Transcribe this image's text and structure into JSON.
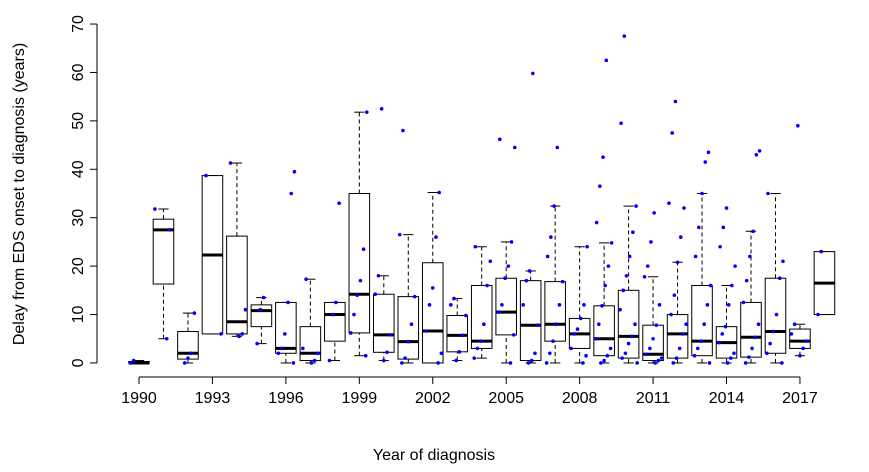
{
  "chart_data": {
    "type": "box",
    "xlabel": "Year of diagnosis",
    "ylabel": "Delay from EDS onset to diagnosis (years)",
    "categories": [
      "1990",
      null,
      null,
      "1993",
      null,
      null,
      "1996",
      null,
      null,
      "1999",
      null,
      null,
      "2002",
      null,
      null,
      "2005",
      null,
      null,
      "2008",
      null,
      null,
      "2011",
      null,
      null,
      "2014",
      null,
      null,
      "2017",
      null
    ],
    "boxes": [
      {
        "low": 0,
        "q1": 0,
        "median": 0,
        "q3": 0.3,
        "high": 0.5
      },
      {
        "low": 5,
        "q1": 16.3,
        "median": 27.5,
        "q3": 29.7,
        "high": 31.8
      },
      {
        "low": 0,
        "q1": 0.8,
        "median": 2,
        "q3": 6.5,
        "high": 10.3
      },
      {
        "low": 6,
        "q1": 6,
        "median": 22.3,
        "q3": 38.7,
        "high": 38.7
      },
      {
        "low": 5.5,
        "q1": 6,
        "median": 8.5,
        "q3": 26.2,
        "high": 41.3
      },
      {
        "low": 4,
        "q1": 7.5,
        "median": 10.8,
        "q3": 12,
        "high": 13.5
      },
      {
        "low": 0,
        "q1": 2,
        "median": 3,
        "q3": 12.5,
        "high": 12.5
      },
      {
        "low": 0,
        "q1": 0.5,
        "median": 2,
        "q3": 7.5,
        "high": 17.3
      },
      {
        "low": 0.5,
        "q1": 4.5,
        "median": 10,
        "q3": 12.5,
        "high": 12.5
      },
      {
        "low": 1.5,
        "q1": 6.2,
        "median": 14.2,
        "q3": 35,
        "high": 51.8
      },
      {
        "low": 0.5,
        "q1": 2.2,
        "median": 5.8,
        "q3": 14.2,
        "high": 18
      },
      {
        "low": 0,
        "q1": 0.8,
        "median": 4.4,
        "q3": 13.7,
        "high": 26.5
      },
      {
        "low": 0,
        "q1": 0,
        "median": 6.6,
        "q3": 20.7,
        "high": 35.2
      },
      {
        "low": 0.5,
        "q1": 2.3,
        "median": 5.7,
        "q3": 9.8,
        "high": 13.3
      },
      {
        "low": 1,
        "q1": 3,
        "median": 4.5,
        "q3": 16,
        "high": 24
      },
      {
        "low": 0,
        "q1": 5.8,
        "median": 10.5,
        "q3": 17.5,
        "high": 25
      },
      {
        "low": 0,
        "q1": 0.5,
        "median": 7.8,
        "q3": 17,
        "high": 19
      },
      {
        "low": 0,
        "q1": 4.5,
        "median": 8,
        "q3": 16.8,
        "high": 32.4
      },
      {
        "low": 0,
        "q1": 3,
        "median": 6,
        "q3": 9.2,
        "high": 24
      },
      {
        "low": 0,
        "q1": 1.5,
        "median": 5,
        "q3": 11.8,
        "high": 24.8
      },
      {
        "low": 0,
        "q1": 1,
        "median": 5.5,
        "q3": 15,
        "high": 32.4
      },
      {
        "low": 0,
        "q1": 0.5,
        "median": 1.8,
        "q3": 7.8,
        "high": 17.8
      },
      {
        "low": 0,
        "q1": 1,
        "median": 6,
        "q3": 10,
        "high": 20.8
      },
      {
        "low": 0,
        "q1": 1.5,
        "median": 4.5,
        "q3": 16,
        "high": 35
      },
      {
        "low": 0,
        "q1": 1,
        "median": 4.2,
        "q3": 7.5,
        "high": 16
      },
      {
        "low": 0,
        "q1": 1.2,
        "median": 5.3,
        "q3": 12.5,
        "high": 27.2
      },
      {
        "low": 0,
        "q1": 2,
        "median": 6.5,
        "q3": 17.5,
        "high": 35
      },
      {
        "low": 1.5,
        "q1": 3,
        "median": 4.5,
        "q3": 7,
        "high": 8
      },
      {
        "low": 10,
        "q1": 10,
        "median": 16.5,
        "q3": 23,
        "high": 23
      }
    ],
    "points": [
      [
        0,
        0.5
      ],
      [
        5,
        27.5,
        31.8
      ],
      [
        0,
        1,
        2,
        10.3
      ],
      [
        6,
        38.7
      ],
      [
        5.5,
        6,
        11,
        41.3
      ],
      [
        4,
        11,
        13.5
      ],
      [
        0,
        2,
        3,
        6,
        12.5,
        35,
        39.5
      ],
      [
        0,
        0.5,
        2,
        3,
        17.3
      ],
      [
        0.5,
        10,
        12.5,
        33
      ],
      [
        1.5,
        6.2,
        10,
        14,
        17,
        23.5,
        51.8
      ],
      [
        0.5,
        2.2,
        5.8,
        14.2,
        18,
        52.5
      ],
      [
        0,
        1,
        4.4,
        8,
        13.7,
        26.5,
        48
      ],
      [
        0,
        2,
        6.6,
        12,
        15.5,
        26,
        35.2
      ],
      [
        0.5,
        2.3,
        5.7,
        9.8,
        12,
        13.3
      ],
      [
        1,
        3,
        4.5,
        8,
        16,
        21,
        24
      ],
      [
        0,
        5.8,
        10.5,
        12,
        17.5,
        20,
        25,
        44.5,
        46.2
      ],
      [
        0,
        0.5,
        2,
        7.8,
        12,
        17,
        19,
        59.8
      ],
      [
        0,
        2,
        4.5,
        8,
        12,
        16.8,
        22,
        26,
        32.4,
        44.5
      ],
      [
        0,
        1.5,
        3,
        6,
        7,
        9.2,
        12,
        24
      ],
      [
        0,
        0.5,
        1.5,
        3,
        5,
        8,
        11.8,
        16,
        20,
        24.8,
        29,
        36.5,
        42.5,
        62.5
      ],
      [
        0,
        1,
        2,
        4,
        5.5,
        8,
        11,
        15,
        18,
        22,
        27,
        32.4,
        49.5,
        67.5
      ],
      [
        0,
        0.5,
        1,
        1.8,
        3,
        5,
        7.8,
        12,
        17.8,
        20,
        25,
        31
      ],
      [
        0,
        1,
        3,
        6,
        8,
        10,
        14,
        20.8,
        26,
        32,
        33,
        47.5,
        54
      ],
      [
        0,
        1.5,
        3,
        4.5,
        8,
        12,
        16,
        22,
        28,
        35,
        41.5,
        43.5
      ],
      [
        0,
        1,
        2,
        4.2,
        6,
        7.5,
        12,
        16,
        20,
        24,
        28,
        32
      ],
      [
        0,
        1.2,
        3,
        5.3,
        8,
        12.5,
        17,
        22,
        27.2,
        43,
        43.8
      ],
      [
        0,
        2,
        4,
        6.5,
        10,
        17.5,
        21,
        35
      ],
      [
        1.5,
        3,
        4.5,
        6,
        8,
        49
      ],
      [
        10,
        23
      ]
    ],
    "point_color": "#0000ff",
    "ylim": [
      -2.9,
      72.9
    ],
    "yticks": [
      0,
      10,
      20,
      30,
      40,
      50,
      60,
      70
    ]
  }
}
